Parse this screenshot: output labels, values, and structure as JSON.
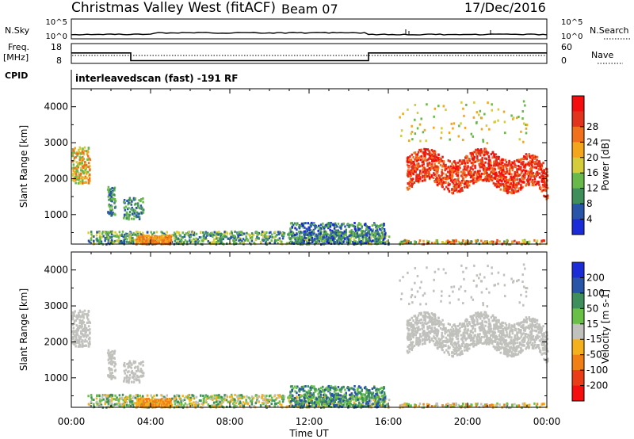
{
  "header": {
    "station": "Christmas Valley West (fitACF)",
    "beam": "Beam 07",
    "date": "17/Dec/2016"
  },
  "top_panels": {
    "nsky_label": "N.Sky",
    "nsky_ticks": [
      "10^5",
      "10^0"
    ],
    "nsearch_label": "N.Search",
    "nsearch_ticks": [
      "10^5",
      "10^0"
    ],
    "freq_label_1": "Freq.",
    "freq_label_2": "[MHz]",
    "freq_ticks": [
      "18",
      "8"
    ],
    "nave_label": "Nave",
    "nave_ticks": [
      "60",
      "0"
    ],
    "cpid_label": "CPID",
    "cpid_text": "interleavedscan (fast) -191 RF"
  },
  "chart_data": [
    {
      "type": "heatmap",
      "name": "power-panel",
      "ylabel": "Slant Range [km]",
      "yticks": [
        "1000",
        "2000",
        "3000",
        "4000"
      ],
      "ylim": [
        180,
        4500
      ],
      "xlim": [
        0,
        24
      ],
      "colorbar_label": "Power [dB]",
      "colorbar_ticks": [
        "4",
        "8",
        "12",
        "16",
        "20",
        "24",
        "28"
      ],
      "colors": [
        "#1a2bd8",
        "#2955a8",
        "#3f8f5c",
        "#68b84a",
        "#d4cc3a",
        "#f3a51b",
        "#f0701c",
        "#e2331c",
        "#f50e0e"
      ]
    },
    {
      "type": "heatmap",
      "name": "velocity-panel",
      "ylabel": "Slant Range [km]",
      "yticks": [
        "1000",
        "2000",
        "3000",
        "4000"
      ],
      "ylim": [
        180,
        4500
      ],
      "xlim": [
        0,
        24
      ],
      "colorbar_label": "Velocity [m s-1]",
      "colorbar_ticks": [
        "200",
        "100",
        "50",
        "15",
        "-15",
        "-50",
        "-100",
        "-200"
      ],
      "colors": [
        "#1a2bd8",
        "#2955a8",
        "#3f8f5c",
        "#68c046",
        "#c0c0bc",
        "#f5b01e",
        "#f08016",
        "#ea3c16",
        "#f50e0e"
      ]
    }
  ],
  "xaxis": {
    "label": "Time UT",
    "ticks": [
      "00:00",
      "04:00",
      "08:00",
      "12:00",
      "16:00",
      "20:00",
      "00:00"
    ]
  },
  "frequency_line": {
    "times": [
      0,
      3.0,
      3.0,
      15.0,
      15.0,
      24
    ],
    "values": [
      13.5,
      13.5,
      9.6,
      9.6,
      13.5,
      13.5
    ]
  }
}
